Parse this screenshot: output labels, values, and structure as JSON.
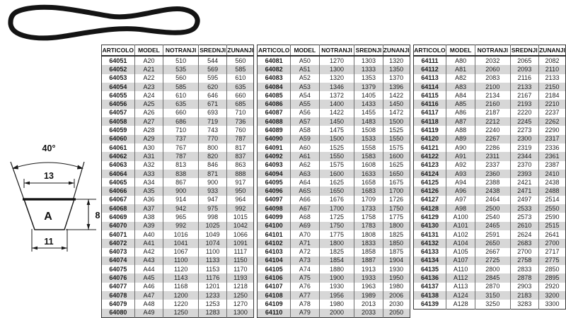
{
  "colors": {
    "stripe": "#d7d7d7",
    "table_border": "#3a3a3a",
    "line": "#1a1a1a",
    "text": "#111111"
  },
  "diagram": {
    "angle_label": "40°",
    "top_width_label": "13",
    "height_label": "8",
    "bottom_width_label": "11",
    "section_label": "A"
  },
  "table": {
    "headers": [
      "ARTICOLO",
      "MODEL",
      "NOTRANJI",
      "SREDNJI",
      "ZUNANJI"
    ],
    "groups": [
      {
        "rows": [
          [
            "64051",
            "A20",
            "510",
            "544",
            "560"
          ],
          [
            "64052",
            "A21",
            "535",
            "569",
            "585"
          ],
          [
            "64053",
            "A22",
            "560",
            "595",
            "610"
          ],
          [
            "64054",
            "A23",
            "585",
            "620",
            "635"
          ],
          [
            "64055",
            "A24",
            "610",
            "646",
            "660"
          ],
          [
            "64056",
            "A25",
            "635",
            "671",
            "685"
          ],
          [
            "64057",
            "A26",
            "660",
            "693",
            "710"
          ],
          [
            "64058",
            "A27",
            "686",
            "719",
            "736"
          ],
          [
            "64059",
            "A28",
            "710",
            "743",
            "760"
          ],
          [
            "64060",
            "A29",
            "737",
            "770",
            "787"
          ],
          [
            "64061",
            "A30",
            "767",
            "800",
            "817"
          ],
          [
            "64062",
            "A31",
            "787",
            "820",
            "837"
          ],
          [
            "64063",
            "A32",
            "813",
            "846",
            "863"
          ],
          [
            "64064",
            "A33",
            "838",
            "871",
            "888"
          ],
          [
            "64065",
            "A34",
            "867",
            "900",
            "917"
          ],
          [
            "64066",
            "A35",
            "900",
            "933",
            "950"
          ],
          [
            "64067",
            "A36",
            "914",
            "947",
            "964"
          ],
          [
            "64068",
            "A37",
            "942",
            "975",
            "992"
          ],
          [
            "64069",
            "A38",
            "965",
            "998",
            "1015"
          ],
          [
            "64070",
            "A39",
            "992",
            "1025",
            "1042"
          ],
          [
            "64071",
            "A40",
            "1016",
            "1049",
            "1066"
          ],
          [
            "64072",
            "A41",
            "1041",
            "1074",
            "1091"
          ],
          [
            "64073",
            "A42",
            "1067",
            "1100",
            "1117"
          ],
          [
            "64074",
            "A43",
            "1100",
            "1133",
            "1150"
          ],
          [
            "64075",
            "A44",
            "1120",
            "1153",
            "1170"
          ],
          [
            "64076",
            "A45",
            "1143",
            "1176",
            "1193"
          ],
          [
            "64077",
            "A46",
            "1168",
            "1201",
            "1218"
          ],
          [
            "64078",
            "A47",
            "1200",
            "1233",
            "1250"
          ],
          [
            "64079",
            "A48",
            "1220",
            "1253",
            "1270"
          ],
          [
            "64080",
            "A49",
            "1250",
            "1283",
            "1300"
          ]
        ]
      },
      {
        "rows": [
          [
            "64081",
            "A50",
            "1270",
            "1303",
            "1320"
          ],
          [
            "64082",
            "A51",
            "1300",
            "1333",
            "1350"
          ],
          [
            "64083",
            "A52",
            "1320",
            "1353",
            "1370"
          ],
          [
            "64084",
            "A53",
            "1346",
            "1379",
            "1396"
          ],
          [
            "64085",
            "A54",
            "1372",
            "1405",
            "1422"
          ],
          [
            "64086",
            "A55",
            "1400",
            "1433",
            "1450"
          ],
          [
            "64087",
            "A56",
            "1422",
            "1455",
            "1472"
          ],
          [
            "64088",
            "A57",
            "1450",
            "1483",
            "1500"
          ],
          [
            "64089",
            "A58",
            "1475",
            "1508",
            "1525"
          ],
          [
            "64090",
            "A59",
            "1500",
            "1533",
            "1550"
          ],
          [
            "64091",
            "A60",
            "1525",
            "1558",
            "1575"
          ],
          [
            "64092",
            "A61",
            "1550",
            "1583",
            "1600"
          ],
          [
            "64093",
            "A62",
            "1575",
            "1608",
            "1625"
          ],
          [
            "64094",
            "A63",
            "1600",
            "1633",
            "1650"
          ],
          [
            "64095",
            "A64",
            "1625",
            "1658",
            "1675"
          ],
          [
            "64096",
            "A6S",
            "1650",
            "1683",
            "1700"
          ],
          [
            "64097",
            "A66",
            "1676",
            "1709",
            "1726"
          ],
          [
            "64098",
            "A67",
            "1700",
            "1733",
            "1750"
          ],
          [
            "64099",
            "A68",
            "1725",
            "1758",
            "1775"
          ],
          [
            "64100",
            "A69",
            "1750",
            "1783",
            "1800"
          ],
          [
            "64101",
            "A70",
            "1775",
            "1808",
            "1825"
          ],
          [
            "64102",
            "A71",
            "1800",
            "1833",
            "1850"
          ],
          [
            "64103",
            "A72",
            "1825",
            "1858",
            "1875"
          ],
          [
            "64104",
            "A73",
            "1854",
            "1887",
            "1904"
          ],
          [
            "64105",
            "A74",
            "1880",
            "1913",
            "1930"
          ],
          [
            "64106",
            "A75",
            "1900",
            "1933",
            "1950"
          ],
          [
            "64107",
            "A76",
            "1930",
            "1963",
            "1980"
          ],
          [
            "64108",
            "A77",
            "1956",
            "1989",
            "2006"
          ],
          [
            "64109",
            "A78",
            "1980",
            "2013",
            "2030"
          ],
          [
            "64110",
            "A79",
            "2000",
            "2033",
            "2050"
          ]
        ]
      },
      {
        "rows": [
          [
            "64111",
            "A80",
            "2032",
            "2065",
            "2082"
          ],
          [
            "64112",
            "A81",
            "2060",
            "2093",
            "2110"
          ],
          [
            "64113",
            "A82",
            "2083",
            "2116",
            "2133"
          ],
          [
            "64114",
            "A83",
            "2100",
            "2133",
            "2150"
          ],
          [
            "64115",
            "A84",
            "2134",
            "2167",
            "2184"
          ],
          [
            "64116",
            "A85",
            "2160",
            "2193",
            "2210"
          ],
          [
            "64117",
            "A86",
            "2187",
            "2220",
            "2237"
          ],
          [
            "64118",
            "A87",
            "2212",
            "2245",
            "2262"
          ],
          [
            "64119",
            "A88",
            "2240",
            "2273",
            "2290"
          ],
          [
            "64120",
            "A89",
            "2267",
            "2300",
            "2317"
          ],
          [
            "64121",
            "A90",
            "2286",
            "2319",
            "2336"
          ],
          [
            "64122",
            "A91",
            "2311",
            "2344",
            "2361"
          ],
          [
            "64123",
            "A92",
            "2337",
            "2370",
            "2387"
          ],
          [
            "64124",
            "A93",
            "2360",
            "2393",
            "2410"
          ],
          [
            "64125",
            "A94",
            "2388",
            "2421",
            "2438"
          ],
          [
            "64126",
            "A96",
            "2438",
            "2471",
            "2488"
          ],
          [
            "64127",
            "A97",
            "2464",
            "2497",
            "2514"
          ],
          [
            "64128",
            "A98",
            "2500",
            "2533",
            "2550"
          ],
          [
            "64129",
            "A100",
            "2540",
            "2573",
            "2590"
          ],
          [
            "64130",
            "A101",
            "2465",
            "2610",
            "2515"
          ],
          [
            "64131",
            "A102",
            "2591",
            "2624",
            "2641"
          ],
          [
            "64132",
            "A104",
            "2650",
            "2683",
            "2700"
          ],
          [
            "64133",
            "A105",
            "2667",
            "2700",
            "2717"
          ],
          [
            "64134",
            "A107",
            "2725",
            "2758",
            "2775"
          ],
          [
            "64135",
            "A110",
            "2800",
            "2833",
            "2850"
          ],
          [
            "64136",
            "A112",
            "2845",
            "2878",
            "2895"
          ],
          [
            "64137",
            "A113",
            "2870",
            "2903",
            "2920"
          ],
          [
            "64138",
            "A124",
            "3150",
            "2183",
            "3200"
          ],
          [
            "64139",
            "A128",
            "3250",
            "3283",
            "3300"
          ]
        ]
      }
    ]
  }
}
